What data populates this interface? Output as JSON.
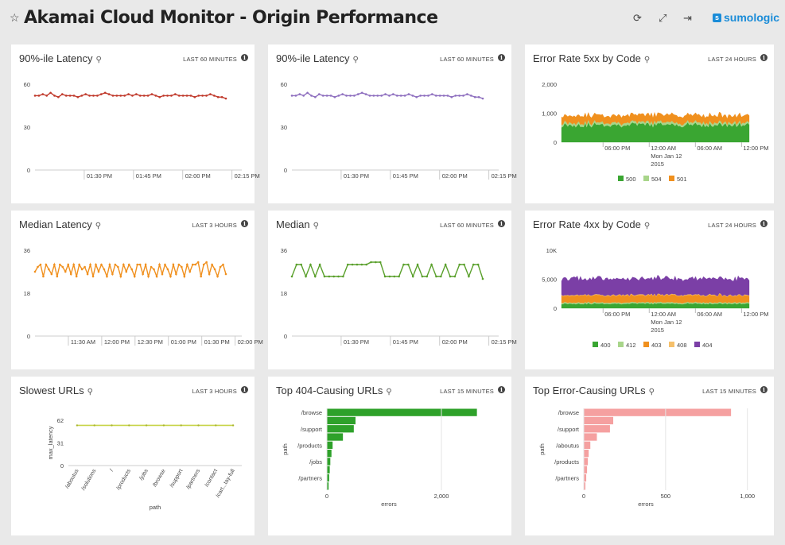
{
  "header": {
    "title": "Akamai Cloud Monitor - Origin Performance",
    "brand": "sumologic",
    "icons": [
      "star-icon",
      "refresh-icon",
      "fullscreen-icon",
      "share-icon",
      "sumologic-logo"
    ]
  },
  "panels": [
    {
      "title": "90%-ile Latency",
      "range": "LAST 60 MINUTES",
      "chart_data": {
        "type": "line",
        "color": "#c0392b",
        "yticks": [
          "60",
          "30",
          "0"
        ],
        "ylim": [
          0,
          60
        ],
        "xticks": [
          "01:30 PM",
          "01:45 PM",
          "02:00 PM",
          "02:15 PM"
        ],
        "values": [
          52,
          52,
          53,
          52,
          54,
          52,
          51,
          53,
          52,
          52,
          52,
          51,
          52,
          53,
          52,
          52,
          52,
          53,
          54,
          53,
          52,
          52,
          52,
          52,
          53,
          52,
          53,
          52,
          52,
          52,
          53,
          52,
          51,
          52,
          52,
          52,
          53,
          52,
          52,
          52,
          52,
          51,
          52,
          52,
          52,
          53,
          52,
          51,
          51,
          50
        ]
      }
    },
    {
      "title": "90%-ile Latency",
      "range": "LAST 60 MINUTES",
      "chart_data": {
        "type": "line",
        "color": "#8e6fbf",
        "yticks": [
          "60",
          "30",
          "0"
        ],
        "ylim": [
          0,
          60
        ],
        "xticks": [
          "01:30 PM",
          "01:45 PM",
          "02:00 PM",
          "02:15 PM"
        ],
        "values": [
          52,
          52,
          53,
          52,
          54,
          52,
          51,
          53,
          52,
          52,
          52,
          51,
          52,
          53,
          52,
          52,
          52,
          53,
          54,
          53,
          52,
          52,
          52,
          52,
          53,
          52,
          53,
          52,
          52,
          52,
          53,
          52,
          51,
          52,
          52,
          52,
          53,
          52,
          52,
          52,
          52,
          51,
          52,
          52,
          52,
          53,
          52,
          51,
          51,
          50
        ]
      }
    },
    {
      "title": "Error Rate 5xx by Code",
      "range": "LAST 24 HOURS",
      "chart_data": {
        "type": "area",
        "stacked": true,
        "yticks": [
          "2,000",
          "1,000",
          "0"
        ],
        "ylim": [
          0,
          2000
        ],
        "xticks": [
          "06:00 PM",
          "12:00 AM",
          "06:00 AM",
          "12:00 PM"
        ],
        "xsub": [
          "Mon Jan 12",
          "2015"
        ],
        "series": [
          {
            "name": "500",
            "color": "#3aa632",
            "level": 600
          },
          {
            "name": "504",
            "color": "#a8d58a",
            "level": 80
          },
          {
            "name": "501",
            "color": "#f0901e",
            "level": 250
          }
        ]
      }
    },
    {
      "title": "Median Latency",
      "range": "LAST 3 HOURS",
      "chart_data": {
        "type": "line",
        "color": "#f0901e",
        "yticks": [
          "36",
          "18",
          "0"
        ],
        "ylim": [
          0,
          36
        ],
        "xticks": [
          "11:30 AM",
          "12:00 PM",
          "12:30 PM",
          "01:00 PM",
          "01:30 PM",
          "02:00 PM"
        ],
        "values": [
          27,
          29,
          30,
          25,
          30,
          28,
          26,
          30,
          25,
          30,
          29,
          27,
          30,
          26,
          30,
          25,
          30,
          28,
          29,
          26,
          30,
          25,
          30,
          27,
          30,
          28,
          25,
          30,
          26,
          30,
          29,
          25,
          30,
          27,
          30,
          28,
          25,
          30,
          30,
          26,
          30,
          25,
          29,
          28,
          25,
          30,
          26,
          30,
          28,
          25,
          30,
          26,
          30,
          29,
          25,
          30,
          27,
          30,
          30,
          31,
          25,
          30,
          31,
          26,
          30,
          28,
          25,
          29,
          30,
          26
        ]
      }
    },
    {
      "title": "Median",
      "range": "LAST 60 MINUTES",
      "chart_data": {
        "type": "line",
        "color": "#5aa02c",
        "yticks": [
          "36",
          "18",
          "0"
        ],
        "ylim": [
          0,
          36
        ],
        "xticks": [
          "01:30 PM",
          "01:45 PM",
          "02:00 PM",
          "02:15 PM"
        ],
        "values": [
          25,
          30,
          30,
          25,
          30,
          25,
          30,
          25,
          25,
          25,
          25,
          25,
          30,
          30,
          30,
          30,
          30,
          31,
          31,
          31,
          25,
          25,
          25,
          25,
          30,
          30,
          25,
          30,
          25,
          25,
          30,
          25,
          25,
          30,
          25,
          25,
          30,
          30,
          25,
          30,
          30,
          24
        ]
      }
    },
    {
      "title": "Error Rate 4xx by Code",
      "range": "LAST 24 HOURS",
      "chart_data": {
        "type": "area",
        "stacked": true,
        "yticks": [
          "10K",
          "5,000",
          "0"
        ],
        "ylim": [
          0,
          10000
        ],
        "xticks": [
          "06:00 PM",
          "12:00 AM",
          "06:00 AM",
          "12:00 PM"
        ],
        "xsub": [
          "Mon Jan 12",
          "2015"
        ],
        "series": [
          {
            "name": "400",
            "color": "#3aa632",
            "level": 800
          },
          {
            "name": "412",
            "color": "#a8d58a",
            "level": 200
          },
          {
            "name": "403",
            "color": "#f0901e",
            "level": 1200
          },
          {
            "name": "408",
            "color": "#f5c06b",
            "level": 100
          },
          {
            "name": "404",
            "color": "#7b3fa6",
            "level": 2800
          }
        ]
      }
    },
    {
      "title": "Slowest URLs",
      "range": "LAST 3 HOURS",
      "chart_data": {
        "type": "line",
        "color": "#c8d44a",
        "yticks": [
          "62",
          "31",
          "0"
        ],
        "ylim": [
          0,
          62
        ],
        "ylabel": "max_latency",
        "xlabel": "path",
        "categories": [
          "/aboutus",
          "/solutions",
          "/",
          "/products",
          "/jobs",
          "/browse",
          "/support",
          "/partners",
          "/contact",
          "/cart...tay-full"
        ],
        "values": [
          55,
          55,
          55,
          55,
          55,
          55,
          55,
          55,
          55,
          55
        ]
      }
    },
    {
      "title": "Top 404-Causing URLs",
      "range": "LAST 15 MINUTES",
      "chart_data": {
        "type": "bar",
        "orientation": "horizontal",
        "color": "#2ea12a",
        "ylabel": "path",
        "xlabel": "errors",
        "xticks": [
          "0",
          "2,000"
        ],
        "xlim": [
          0,
          3000
        ],
        "categories": [
          "/browse",
          "",
          "/support",
          "",
          "/products",
          "",
          "/jobs",
          "",
          "/partners",
          ""
        ],
        "values": [
          2620,
          500,
          470,
          280,
          100,
          80,
          60,
          50,
          40,
          30
        ]
      }
    },
    {
      "title": "Top Error-Causing URLs",
      "range": "LAST 15 MINUTES",
      "chart_data": {
        "type": "bar",
        "orientation": "horizontal",
        "color": "#f5a0a0",
        "ylabel": "path",
        "xlabel": "errors",
        "xticks": [
          "0",
          "500",
          "1,000"
        ],
        "xlim": [
          0,
          1050
        ],
        "categories": [
          "/browse",
          "",
          "/support",
          "",
          "/aboutus",
          "",
          "/products",
          "",
          "/partners",
          ""
        ],
        "values": [
          900,
          180,
          160,
          80,
          40,
          30,
          25,
          20,
          15,
          10
        ]
      }
    }
  ]
}
